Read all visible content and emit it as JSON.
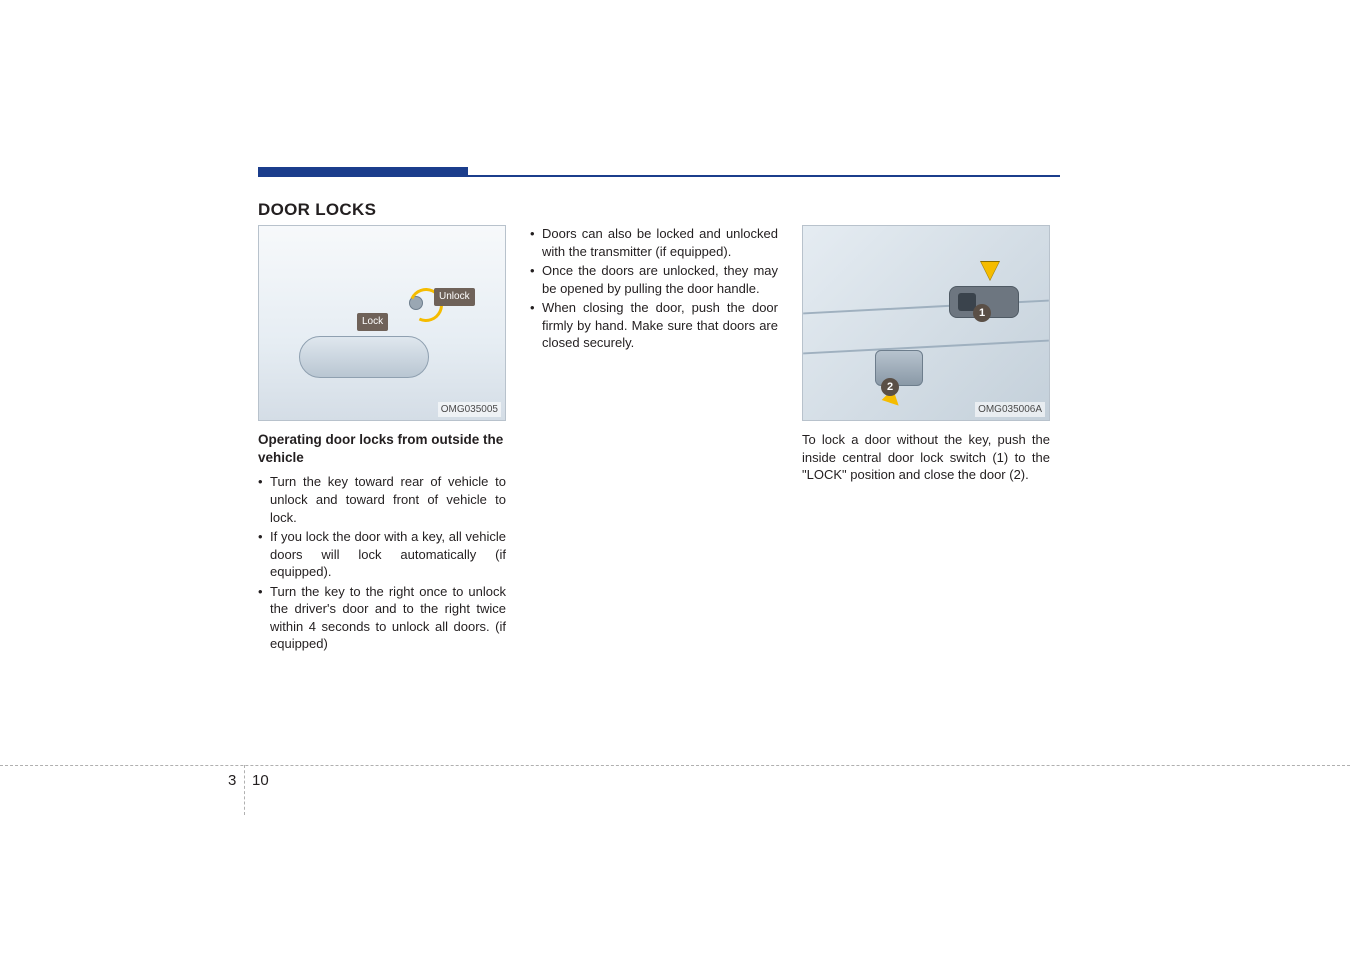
{
  "colors": {
    "accent_bar": "#1b3d8c",
    "text": "#231f20",
    "figure_bg_top": "#f7f9fb",
    "figure_bg_bottom": "#d4dde6",
    "figure_border": "#b8c2cc",
    "arrow_yellow": "#f5bc00",
    "label_bg": "#6f6259",
    "badge_bg": "#5a4f46",
    "dash": "#b0b0b0"
  },
  "section_title": "DOOR LOCKS",
  "page": {
    "chapter": "3",
    "number": "10"
  },
  "col1": {
    "figure": {
      "code": "OMG035005",
      "label_lock": "Lock",
      "label_unlock": "Unlock"
    },
    "subhead": "Operating door locks from outside the vehicle",
    "bullets": [
      "Turn the key toward rear of vehicle to unlock and toward front of vehicle to lock.",
      "If you lock the door with a key, all vehicle doors will lock automatically (if equipped).",
      "Turn the key to the right once to unlock the driver's door and to the right twice within 4 seconds to unlock all doors. (if equipped)"
    ]
  },
  "col2": {
    "bullets": [
      "Doors can also be locked and unlocked with the transmitter (if equipped).",
      "Once the doors are unlocked, they may be opened by pulling the door handle.",
      "When closing the door, push the door firmly by hand. Make sure that doors are closed securely."
    ]
  },
  "col3": {
    "figure": {
      "code": "OMG035006A",
      "badge1": "1",
      "badge2": "2"
    },
    "paragraph": "To lock a door without the key, push the inside central door lock switch (1) to the \"LOCK\" position and close the door (2)."
  }
}
